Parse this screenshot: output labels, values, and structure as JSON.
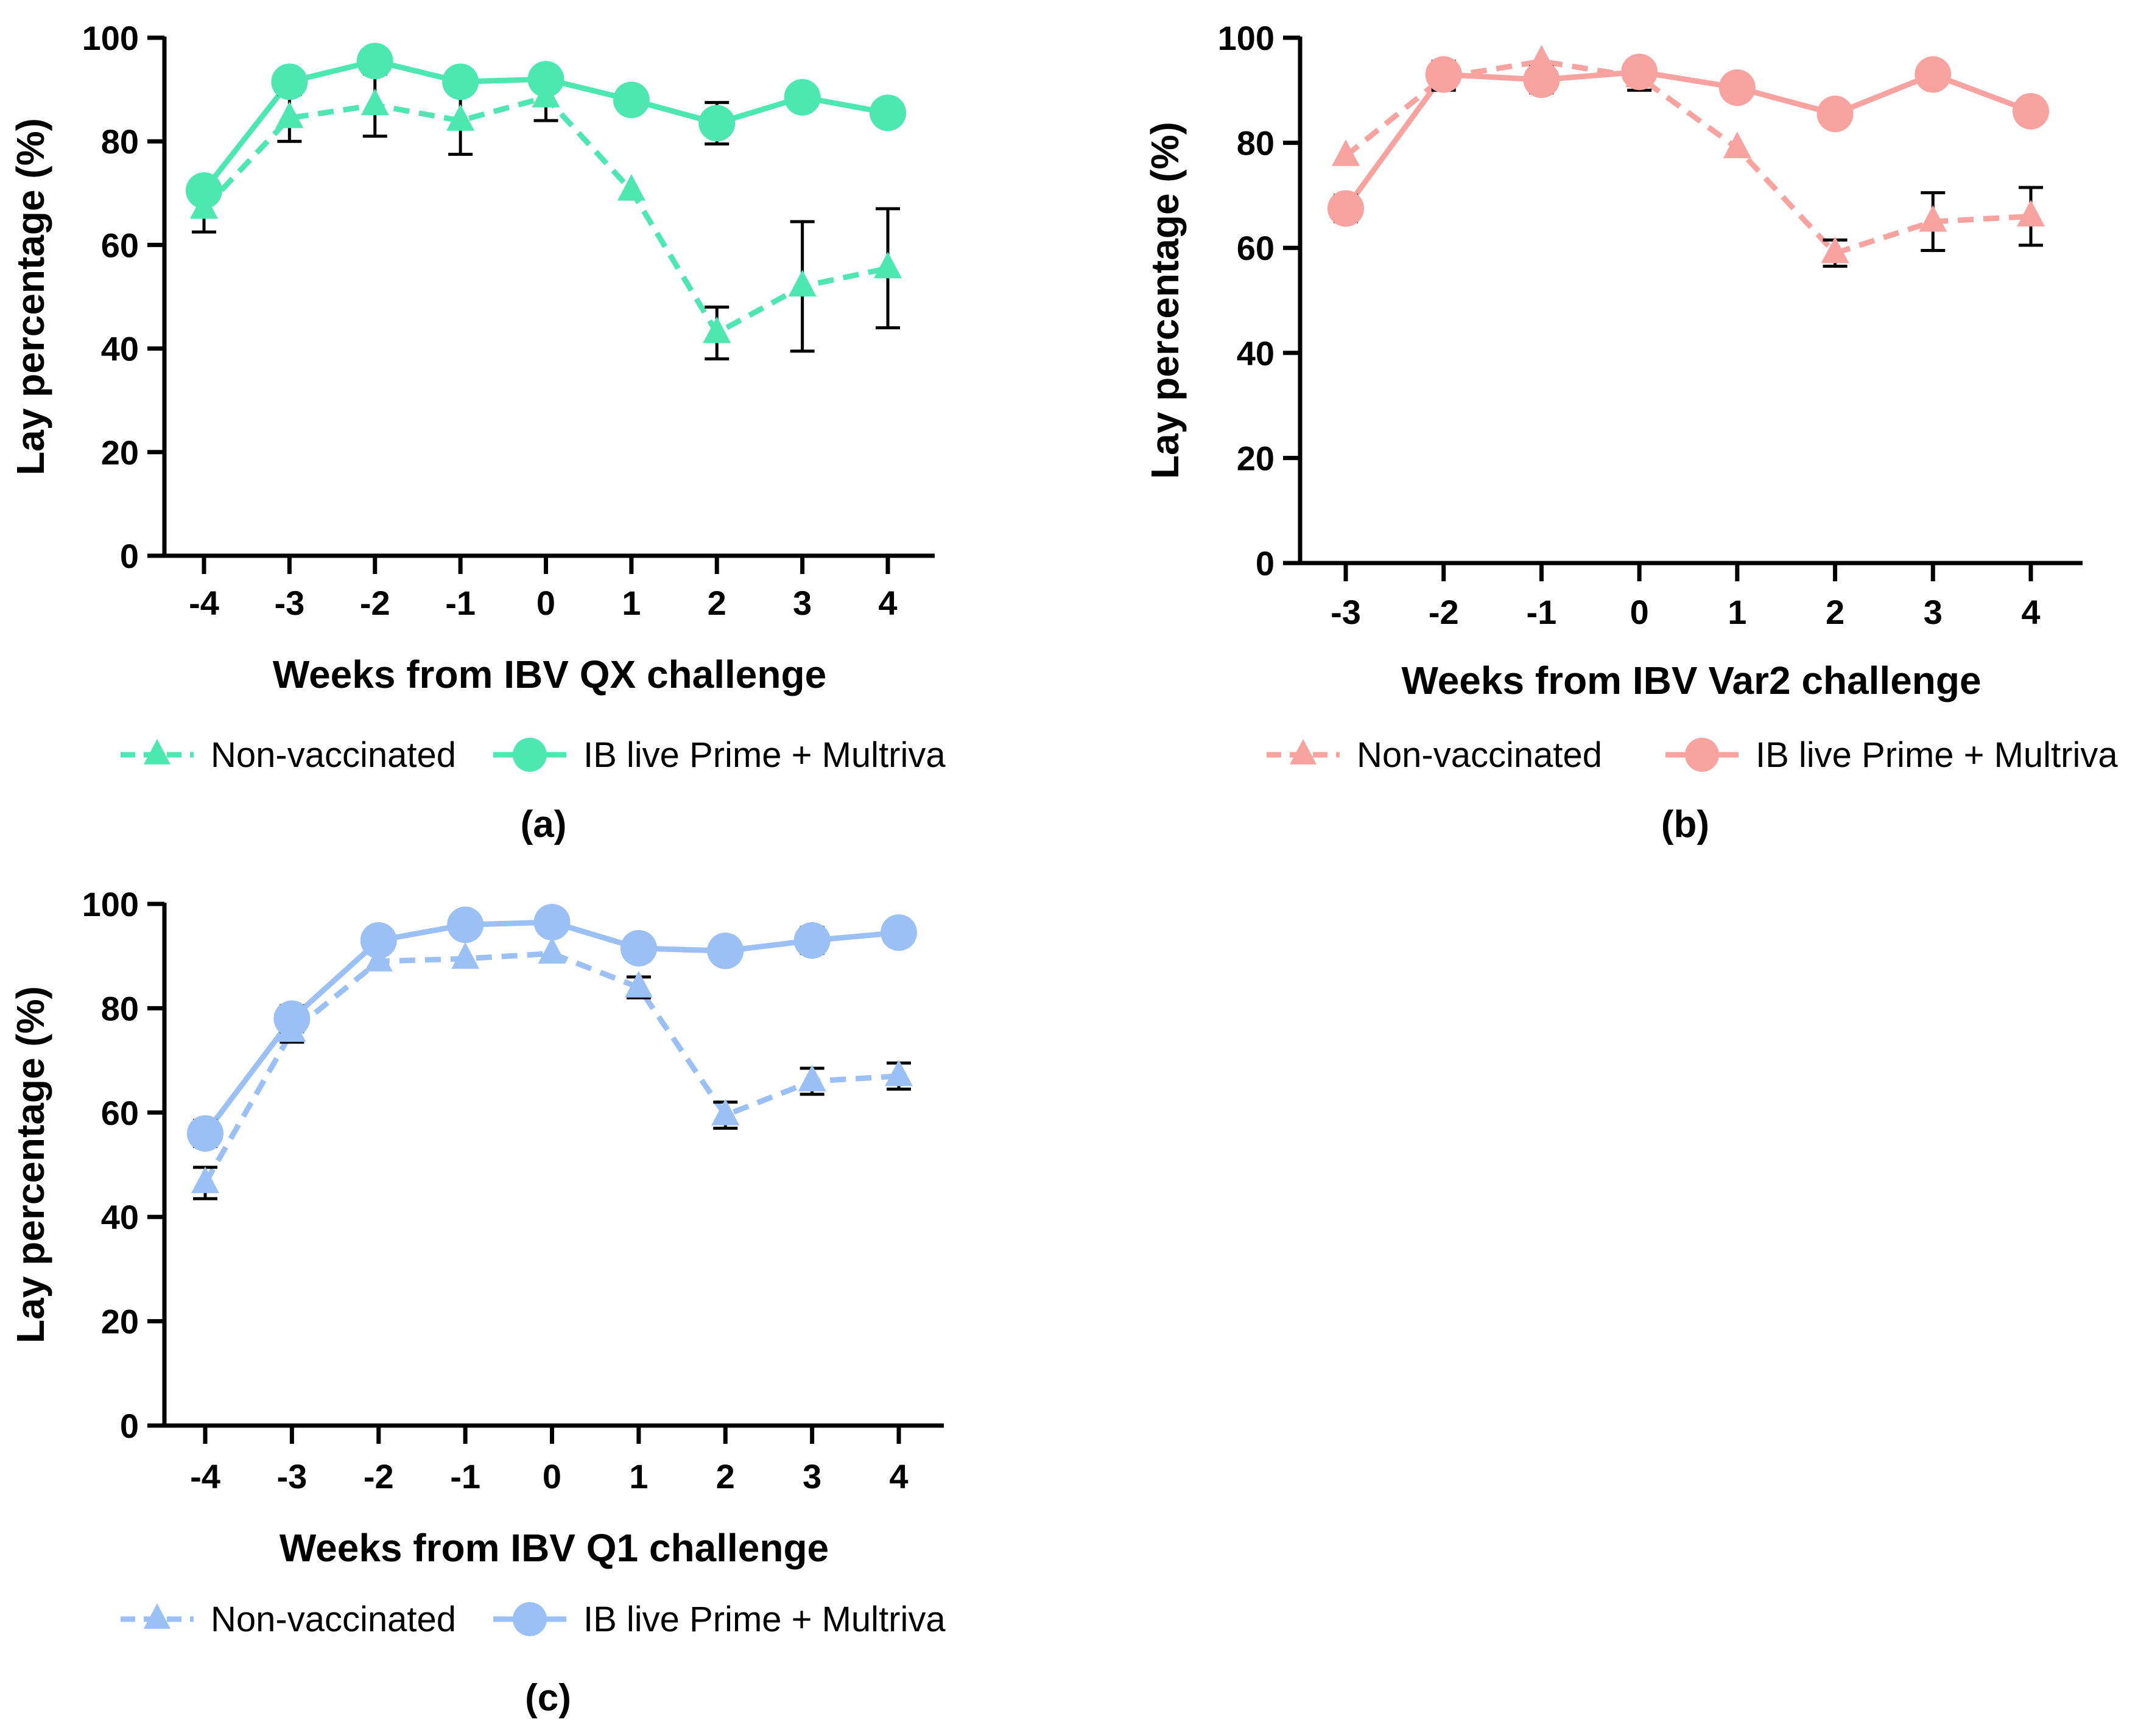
{
  "chart_data": [
    {
      "panel": "(a)",
      "type": "line",
      "xlabel": "Weeks from IBV QX challenge",
      "ylabel": "Lay percentage (%)",
      "ylim": [
        0,
        100
      ],
      "yticks": [
        0,
        20,
        40,
        60,
        80,
        100
      ],
      "x": [
        -4,
        -3,
        -2,
        -1,
        0,
        1,
        2,
        3,
        4
      ],
      "x_tick_labels": [
        "-4",
        "-3",
        "-2",
        "-1",
        "0",
        "1",
        "2",
        "3",
        "4"
      ],
      "color": "#4de8b2",
      "series": [
        {
          "name": "Non-vaccinated",
          "style": "dashed",
          "marker": "triangle",
          "values": [
            67,
            84.5,
            87,
            84,
            88.5,
            70.5,
            43,
            52,
            55.5
          ],
          "error": [
            4.5,
            4.5,
            6,
            6.5,
            4.5,
            0,
            5,
            12.5,
            11.5
          ]
        },
        {
          "name": "IB live Prime + Multriva",
          "style": "solid",
          "marker": "circle",
          "values": [
            70.5,
            91.5,
            95.5,
            91.5,
            92,
            88,
            83.5,
            88.5,
            85.5
          ],
          "error": [
            0,
            2,
            0,
            0,
            0,
            0,
            4,
            2,
            0
          ]
        }
      ]
    },
    {
      "panel": "(b)",
      "type": "line",
      "xlabel": "Weeks from IBV Var2 challenge",
      "ylabel": "Lay percentage (%)",
      "ylim": [
        0,
        100
      ],
      "yticks": [
        0,
        20,
        40,
        60,
        80,
        100
      ],
      "x": [
        -3,
        -2,
        -1,
        0,
        1,
        2,
        3,
        4
      ],
      "x_tick_labels": [
        "-3",
        "-2",
        "-1",
        "0",
        "1",
        "2",
        "3",
        "4"
      ],
      "color": "#f8a3a0",
      "series": [
        {
          "name": "Non-vaccinated",
          "style": "dashed",
          "marker": "triangle",
          "values": [
            77.5,
            92.5,
            95.5,
            92.5,
            79,
            59,
            65,
            66
          ],
          "error": [
            0,
            2.5,
            0,
            2.5,
            0,
            2.5,
            5.5,
            5.5
          ]
        },
        {
          "name": "IB live Prime + Multriva",
          "style": "solid",
          "marker": "circle",
          "values": [
            67.5,
            93,
            92,
            93.5,
            90.5,
            85.5,
            93,
            86
          ],
          "error": [
            2.5,
            2.5,
            2.5,
            2,
            0,
            0,
            0,
            2
          ]
        }
      ]
    },
    {
      "panel": "(c)",
      "type": "line",
      "xlabel": "Weeks from IBV Q1 challenge",
      "ylabel": "Lay percentage (%)",
      "ylim": [
        0,
        100
      ],
      "yticks": [
        0,
        20,
        40,
        60,
        80,
        100
      ],
      "x": [
        -4,
        -3,
        -2,
        -1,
        0,
        1,
        2,
        3,
        4
      ],
      "x_tick_labels": [
        "-4",
        "-3",
        "-2",
        "-1",
        "0",
        "1",
        "2",
        "3",
        "4"
      ],
      "color": "#9bc0f5",
      "series": [
        {
          "name": "Non-vaccinated",
          "style": "dashed",
          "marker": "triangle",
          "values": [
            46.5,
            75.5,
            89,
            89.5,
            90.5,
            84,
            59.5,
            66,
            67
          ],
          "error": [
            3,
            2,
            0,
            0,
            0,
            2,
            2.5,
            2.5,
            2.5
          ]
        },
        {
          "name": "IB live Prime + Multriva",
          "style": "solid",
          "marker": "circle",
          "values": [
            56,
            78,
            93,
            96,
            96.5,
            91.5,
            91,
            93,
            94.5
          ],
          "error": [
            2.5,
            2.5,
            0,
            0,
            0,
            0,
            2,
            2.5,
            0
          ]
        }
      ]
    }
  ]
}
